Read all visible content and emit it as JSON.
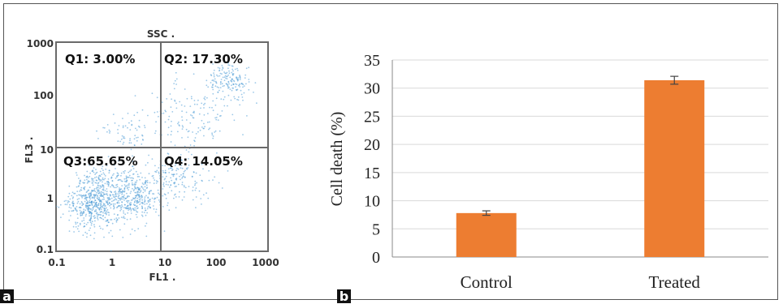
{
  "panels": {
    "a_label": "a",
    "b_label": "b"
  },
  "chart_data": [
    {
      "type": "scatter",
      "title": "SSC .",
      "xlabel": "FL1 .",
      "ylabel": "FL3 .",
      "xscale": "log",
      "yscale": "log",
      "xlim": [
        0.1,
        1000
      ],
      "ylim": [
        0.1,
        1000
      ],
      "x_ticks": [
        "0.1",
        "1",
        "10",
        "100",
        "1000"
      ],
      "y_ticks": [
        "0.1",
        "1",
        "10",
        "100",
        "1000"
      ],
      "quadrant_gate": {
        "x": 10,
        "y": 10
      },
      "quadrants": [
        {
          "name": "Q1",
          "text": "Q1: 3.00%",
          "value": 3.0
        },
        {
          "name": "Q2",
          "text": "Q2: 17.30%",
          "value": 17.3
        },
        {
          "name": "Q3",
          "text": "Q3:65.65%",
          "value": 65.65
        },
        {
          "name": "Q4",
          "text": "Q4: 14.05%",
          "value": 14.05
        }
      ],
      "point_color": "#4a9bd6",
      "grid": false
    },
    {
      "type": "bar",
      "categories": [
        "Control",
        "Treated"
      ],
      "values": [
        7.8,
        31.4
      ],
      "errors": [
        0.4,
        0.7
      ],
      "ylabel": "Cell death (%)",
      "xlabel": "",
      "ylim": [
        0,
        35
      ],
      "y_ticks": [
        0,
        5,
        10,
        15,
        20,
        25,
        30,
        35
      ],
      "bar_color": "#ed7d31",
      "grid": true
    }
  ]
}
